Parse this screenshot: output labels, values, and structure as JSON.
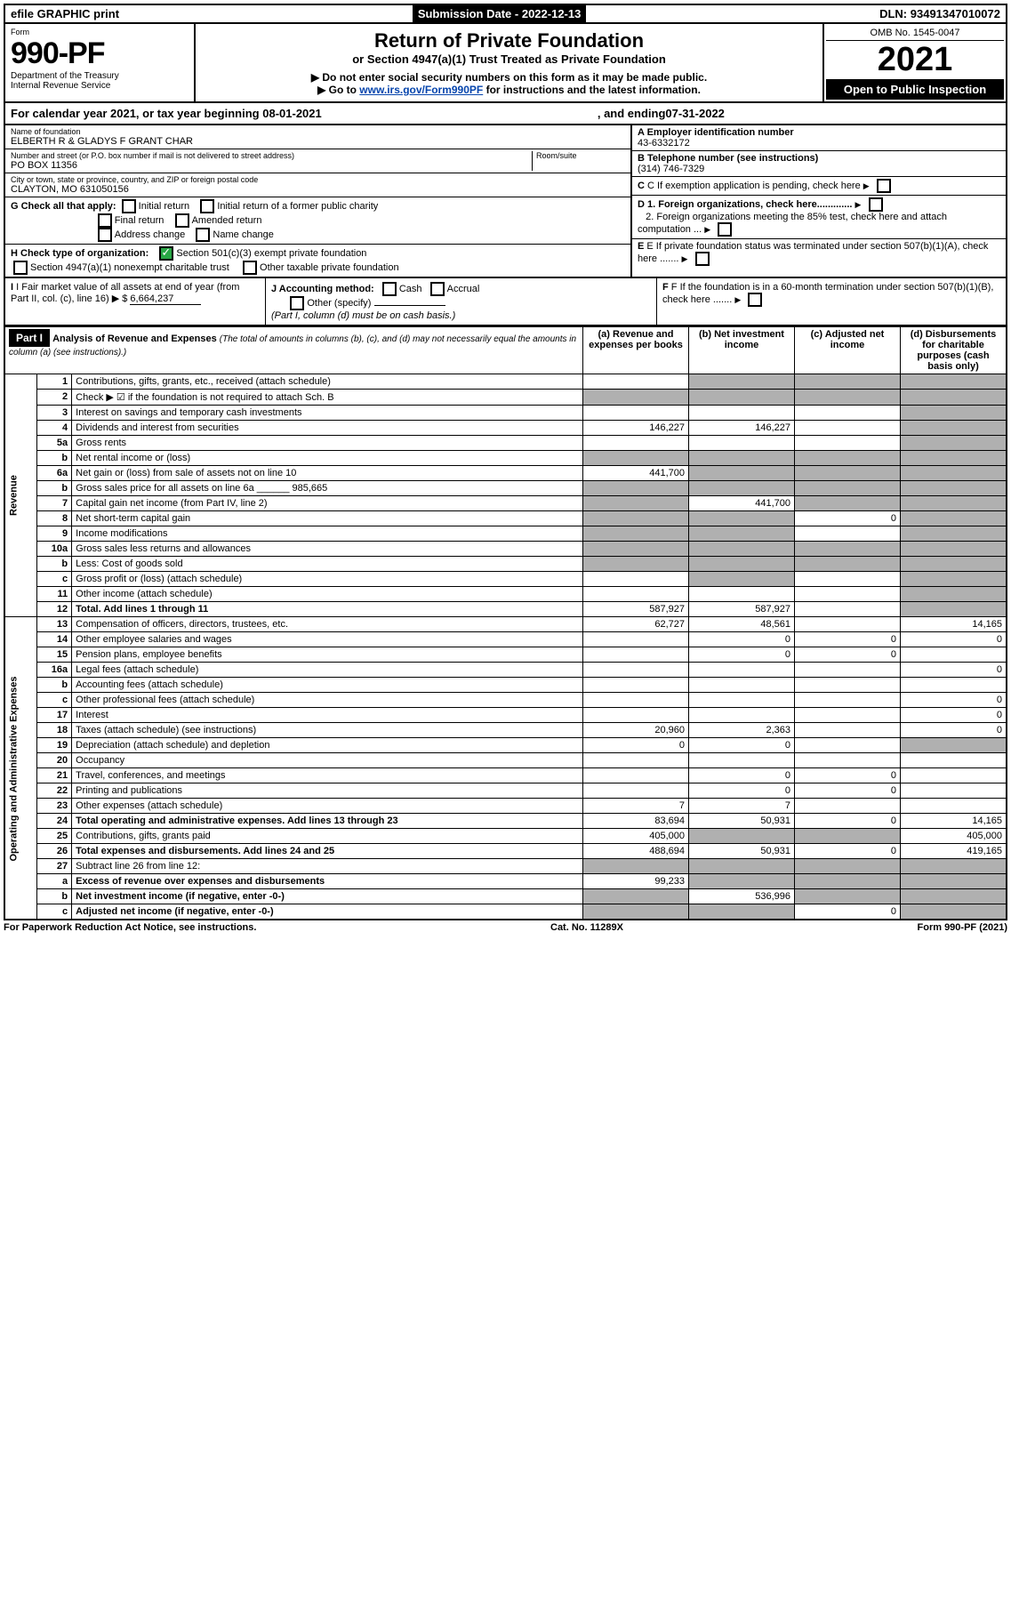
{
  "topbar": {
    "efile": "efile GRAPHIC print",
    "submission_label": "Submission Date",
    "submission_date": "2022-12-13",
    "dln_label": "DLN:",
    "dln": "93491347010072"
  },
  "header": {
    "form_word": "Form",
    "form_num": "990-PF",
    "dept": "Department of the Treasury",
    "irs": "Internal Revenue Service",
    "title": "Return of Private Foundation",
    "subtitle": "or Section 4947(a)(1) Trust Treated as Private Foundation",
    "warn1": "▶ Do not enter social security numbers on this form as it may be made public.",
    "warn2_pre": "▶ Go to ",
    "warn2_link": "www.irs.gov/Form990PF",
    "warn2_post": " for instructions and the latest information.",
    "omb": "OMB No. 1545-0047",
    "year": "2021",
    "open": "Open to Public Inspection"
  },
  "calyear": {
    "prefix": "For calendar year 2021, or tax year beginning ",
    "begin": "08-01-2021",
    "mid": " , and ending ",
    "end": "07-31-2022"
  },
  "foundation": {
    "name_label": "Name of foundation",
    "name": "ELBERTH R & GLADYS F GRANT CHAR",
    "addr_label": "Number and street (or P.O. box number if mail is not delivered to street address)",
    "room_label": "Room/suite",
    "addr": "PO BOX 11356",
    "city_label": "City or town, state or province, country, and ZIP or foreign postal code",
    "city": "CLAYTON, MO  631050156",
    "ein_label": "A Employer identification number",
    "ein": "43-6332172",
    "phone_label": "B Telephone number (see instructions)",
    "phone": "(314) 746-7329",
    "c_label": "C If exemption application is pending, check here",
    "d1": "D 1. Foreign organizations, check here.............",
    "d2": "2. Foreign organizations meeting the 85% test, check here and attach computation ...",
    "e": "E If private foundation status was terminated under section 507(b)(1)(A), check here .......",
    "f": "F If the foundation is in a 60-month termination under section 507(b)(1)(B), check here .......",
    "g_label": "G Check all that apply:",
    "g_opts": [
      "Initial return",
      "Initial return of a former public charity",
      "Final return",
      "Amended return",
      "Address change",
      "Name change"
    ],
    "h_label": "H Check type of organization:",
    "h_opt1": "Section 501(c)(3) exempt private foundation",
    "h_opt2": "Section 4947(a)(1) nonexempt charitable trust",
    "h_opt3": "Other taxable private foundation",
    "i_label": "I Fair market value of all assets at end of year (from Part II, col. (c), line 16)",
    "i_val": "6,664,237",
    "j_label": "J Accounting method:",
    "j_cash": "Cash",
    "j_accrual": "Accrual",
    "j_other": "Other (specify)",
    "j_note": "(Part I, column (d) must be on cash basis.)"
  },
  "part1": {
    "label": "Part I",
    "title": "Analysis of Revenue and Expenses",
    "title_note": "(The total of amounts in columns (b), (c), and (d) may not necessarily equal the amounts in column (a) (see instructions).)",
    "col_a": "(a) Revenue and expenses per books",
    "col_b": "(b) Net investment income",
    "col_c": "(c) Adjusted net income",
    "col_d": "(d) Disbursements for charitable purposes (cash basis only)"
  },
  "sides": {
    "revenue": "Revenue",
    "expenses": "Operating and Administrative Expenses"
  },
  "rows": [
    {
      "n": "1",
      "desc": "Contributions, gifts, grants, etc., received (attach schedule)",
      "a": "",
      "b": "s",
      "c": "s",
      "d": "s"
    },
    {
      "n": "2",
      "desc": "Check ▶ ☑ if the foundation is not required to attach Sch. B",
      "a": "s",
      "b": "s",
      "c": "s",
      "d": "s",
      "dots": true
    },
    {
      "n": "3",
      "desc": "Interest on savings and temporary cash investments",
      "a": "",
      "b": "",
      "c": "",
      "d": "s"
    },
    {
      "n": "4",
      "desc": "Dividends and interest from securities",
      "a": "146,227",
      "b": "146,227",
      "c": "",
      "d": "s",
      "dots": true
    },
    {
      "n": "5a",
      "desc": "Gross rents",
      "a": "",
      "b": "",
      "c": "",
      "d": "s",
      "dots": true
    },
    {
      "n": "b",
      "desc": "Net rental income or (loss)",
      "a": "s",
      "b": "s",
      "c": "s",
      "d": "s"
    },
    {
      "n": "6a",
      "desc": "Net gain or (loss) from sale of assets not on line 10",
      "a": "441,700",
      "b": "s",
      "c": "s",
      "d": "s"
    },
    {
      "n": "b",
      "desc": "Gross sales price for all assets on line 6a ______ 985,665",
      "a": "s",
      "b": "s",
      "c": "s",
      "d": "s"
    },
    {
      "n": "7",
      "desc": "Capital gain net income (from Part IV, line 2)",
      "a": "s",
      "b": "441,700",
      "c": "s",
      "d": "s",
      "dots": true
    },
    {
      "n": "8",
      "desc": "Net short-term capital gain",
      "a": "s",
      "b": "s",
      "c": "0",
      "d": "s",
      "dots": true
    },
    {
      "n": "9",
      "desc": "Income modifications",
      "a": "s",
      "b": "s",
      "c": "",
      "d": "s",
      "dots": true
    },
    {
      "n": "10a",
      "desc": "Gross sales less returns and allowances",
      "a": "s",
      "b": "s",
      "c": "s",
      "d": "s"
    },
    {
      "n": "b",
      "desc": "Less: Cost of goods sold",
      "a": "s",
      "b": "s",
      "c": "s",
      "d": "s",
      "dots": true
    },
    {
      "n": "c",
      "desc": "Gross profit or (loss) (attach schedule)",
      "a": "",
      "b": "s",
      "c": "",
      "d": "s",
      "dots": true
    },
    {
      "n": "11",
      "desc": "Other income (attach schedule)",
      "a": "",
      "b": "",
      "c": "",
      "d": "s",
      "dots": true
    },
    {
      "n": "12",
      "desc": "Total. Add lines 1 through 11",
      "a": "587,927",
      "b": "587,927",
      "c": "",
      "d": "s",
      "bold": true,
      "dots": true
    },
    {
      "n": "13",
      "desc": "Compensation of officers, directors, trustees, etc.",
      "a": "62,727",
      "b": "48,561",
      "c": "",
      "d": "14,165"
    },
    {
      "n": "14",
      "desc": "Other employee salaries and wages",
      "a": "",
      "b": "0",
      "c": "0",
      "d": "0",
      "dots": true
    },
    {
      "n": "15",
      "desc": "Pension plans, employee benefits",
      "a": "",
      "b": "0",
      "c": "0",
      "d": "",
      "dots": true
    },
    {
      "n": "16a",
      "desc": "Legal fees (attach schedule)",
      "a": "",
      "b": "",
      "c": "",
      "d": "0",
      "dots": true
    },
    {
      "n": "b",
      "desc": "Accounting fees (attach schedule)",
      "a": "",
      "b": "",
      "c": "",
      "d": "",
      "dots": true
    },
    {
      "n": "c",
      "desc": "Other professional fees (attach schedule)",
      "a": "",
      "b": "",
      "c": "",
      "d": "0",
      "dots": true
    },
    {
      "n": "17",
      "desc": "Interest",
      "a": "",
      "b": "",
      "c": "",
      "d": "0",
      "dots": true
    },
    {
      "n": "18",
      "desc": "Taxes (attach schedule) (see instructions)",
      "a": "20,960",
      "b": "2,363",
      "c": "",
      "d": "0",
      "dots": true
    },
    {
      "n": "19",
      "desc": "Depreciation (attach schedule) and depletion",
      "a": "0",
      "b": "0",
      "c": "",
      "d": "s",
      "dots": true
    },
    {
      "n": "20",
      "desc": "Occupancy",
      "a": "",
      "b": "",
      "c": "",
      "d": "",
      "dots": true
    },
    {
      "n": "21",
      "desc": "Travel, conferences, and meetings",
      "a": "",
      "b": "0",
      "c": "0",
      "d": "",
      "dots": true
    },
    {
      "n": "22",
      "desc": "Printing and publications",
      "a": "",
      "b": "0",
      "c": "0",
      "d": "",
      "dots": true
    },
    {
      "n": "23",
      "desc": "Other expenses (attach schedule)",
      "a": "7",
      "b": "7",
      "c": "",
      "d": "",
      "dots": true
    },
    {
      "n": "24",
      "desc": "Total operating and administrative expenses. Add lines 13 through 23",
      "a": "83,694",
      "b": "50,931",
      "c": "0",
      "d": "14,165",
      "bold": true,
      "dots": true
    },
    {
      "n": "25",
      "desc": "Contributions, gifts, grants paid",
      "a": "405,000",
      "b": "s",
      "c": "s",
      "d": "405,000",
      "dots": true
    },
    {
      "n": "26",
      "desc": "Total expenses and disbursements. Add lines 24 and 25",
      "a": "488,694",
      "b": "50,931",
      "c": "0",
      "d": "419,165",
      "bold": true
    },
    {
      "n": "27",
      "desc": "Subtract line 26 from line 12:",
      "a": "s",
      "b": "s",
      "c": "s",
      "d": "s"
    },
    {
      "n": "a",
      "desc": "Excess of revenue over expenses and disbursements",
      "a": "99,233",
      "b": "s",
      "c": "s",
      "d": "s",
      "bold": true
    },
    {
      "n": "b",
      "desc": "Net investment income (if negative, enter -0-)",
      "a": "s",
      "b": "536,996",
      "c": "s",
      "d": "s",
      "bold": true
    },
    {
      "n": "c",
      "desc": "Adjusted net income (if negative, enter -0-)",
      "a": "s",
      "b": "s",
      "c": "0",
      "d": "s",
      "bold": true,
      "dots": true
    }
  ],
  "footer": {
    "left": "For Paperwork Reduction Act Notice, see instructions.",
    "mid": "Cat. No. 11289X",
    "right": "Form 990-PF (2021)"
  }
}
